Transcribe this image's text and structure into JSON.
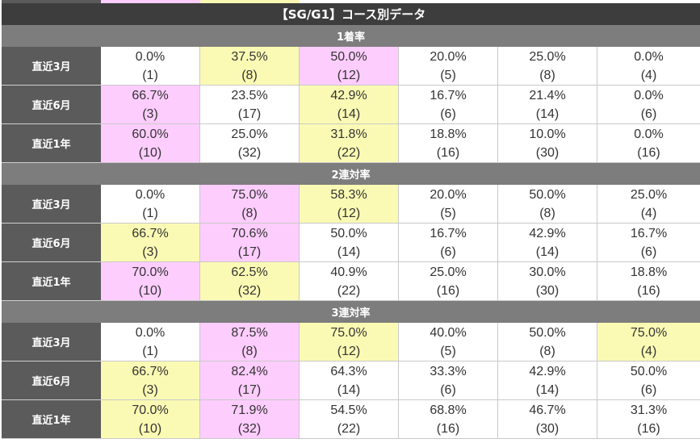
{
  "colors": {
    "title_bg": "#3d3d3d",
    "section_bg": "#7d7d7d",
    "label_bg": "#5b5b5b",
    "highlight_pink": "#fdcdfd",
    "highlight_yellow": "#fafab4",
    "cell_text": "#333333"
  },
  "title": "【SG/G1】コース別データ",
  "sections": [
    {
      "header": "1着率",
      "rows": [
        {
          "label": "直近3月",
          "cells": [
            {
              "pct": "0.0%",
              "count": "(1)",
              "hl": "none"
            },
            {
              "pct": "37.5%",
              "count": "(8)",
              "hl": "yellow"
            },
            {
              "pct": "50.0%",
              "count": "(12)",
              "hl": "pink"
            },
            {
              "pct": "20.0%",
              "count": "(5)",
              "hl": "none"
            },
            {
              "pct": "25.0%",
              "count": "(8)",
              "hl": "none"
            },
            {
              "pct": "0.0%",
              "count": "(4)",
              "hl": "none"
            }
          ]
        },
        {
          "label": "直近6月",
          "cells": [
            {
              "pct": "66.7%",
              "count": "(3)",
              "hl": "pink"
            },
            {
              "pct": "23.5%",
              "count": "(17)",
              "hl": "none"
            },
            {
              "pct": "42.9%",
              "count": "(14)",
              "hl": "yellow"
            },
            {
              "pct": "16.7%",
              "count": "(6)",
              "hl": "none"
            },
            {
              "pct": "21.4%",
              "count": "(14)",
              "hl": "none"
            },
            {
              "pct": "0.0%",
              "count": "(6)",
              "hl": "none"
            }
          ]
        },
        {
          "label": "直近1年",
          "cells": [
            {
              "pct": "60.0%",
              "count": "(10)",
              "hl": "pink"
            },
            {
              "pct": "25.0%",
              "count": "(32)",
              "hl": "none"
            },
            {
              "pct": "31.8%",
              "count": "(22)",
              "hl": "yellow"
            },
            {
              "pct": "18.8%",
              "count": "(16)",
              "hl": "none"
            },
            {
              "pct": "10.0%",
              "count": "(30)",
              "hl": "none"
            },
            {
              "pct": "0.0%",
              "count": "(16)",
              "hl": "none"
            }
          ]
        }
      ]
    },
    {
      "header": "2連対率",
      "rows": [
        {
          "label": "直近3月",
          "cells": [
            {
              "pct": "0.0%",
              "count": "(1)",
              "hl": "none"
            },
            {
              "pct": "75.0%",
              "count": "(8)",
              "hl": "pink"
            },
            {
              "pct": "58.3%",
              "count": "(12)",
              "hl": "yellow"
            },
            {
              "pct": "20.0%",
              "count": "(5)",
              "hl": "none"
            },
            {
              "pct": "50.0%",
              "count": "(8)",
              "hl": "none"
            },
            {
              "pct": "25.0%",
              "count": "(4)",
              "hl": "none"
            }
          ]
        },
        {
          "label": "直近6月",
          "cells": [
            {
              "pct": "66.7%",
              "count": "(3)",
              "hl": "yellow"
            },
            {
              "pct": "70.6%",
              "count": "(17)",
              "hl": "pink"
            },
            {
              "pct": "50.0%",
              "count": "(14)",
              "hl": "none"
            },
            {
              "pct": "16.7%",
              "count": "(6)",
              "hl": "none"
            },
            {
              "pct": "42.9%",
              "count": "(14)",
              "hl": "none"
            },
            {
              "pct": "16.7%",
              "count": "(6)",
              "hl": "none"
            }
          ]
        },
        {
          "label": "直近1年",
          "cells": [
            {
              "pct": "70.0%",
              "count": "(10)",
              "hl": "pink"
            },
            {
              "pct": "62.5%",
              "count": "(32)",
              "hl": "yellow"
            },
            {
              "pct": "40.9%",
              "count": "(22)",
              "hl": "none"
            },
            {
              "pct": "25.0%",
              "count": "(16)",
              "hl": "none"
            },
            {
              "pct": "30.0%",
              "count": "(30)",
              "hl": "none"
            },
            {
              "pct": "18.8%",
              "count": "(16)",
              "hl": "none"
            }
          ]
        }
      ]
    },
    {
      "header": "3連対率",
      "rows": [
        {
          "label": "直近3月",
          "cells": [
            {
              "pct": "0.0%",
              "count": "(1)",
              "hl": "none"
            },
            {
              "pct": "87.5%",
              "count": "(8)",
              "hl": "pink"
            },
            {
              "pct": "75.0%",
              "count": "(12)",
              "hl": "yellow"
            },
            {
              "pct": "40.0%",
              "count": "(5)",
              "hl": "none"
            },
            {
              "pct": "50.0%",
              "count": "(8)",
              "hl": "none"
            },
            {
              "pct": "75.0%",
              "count": "(4)",
              "hl": "yellow"
            }
          ]
        },
        {
          "label": "直近6月",
          "cells": [
            {
              "pct": "66.7%",
              "count": "(3)",
              "hl": "yellow"
            },
            {
              "pct": "82.4%",
              "count": "(17)",
              "hl": "pink"
            },
            {
              "pct": "64.3%",
              "count": "(14)",
              "hl": "none"
            },
            {
              "pct": "33.3%",
              "count": "(6)",
              "hl": "none"
            },
            {
              "pct": "42.9%",
              "count": "(14)",
              "hl": "none"
            },
            {
              "pct": "50.0%",
              "count": "(6)",
              "hl": "none"
            }
          ]
        },
        {
          "label": "直近1年",
          "cells": [
            {
              "pct": "70.0%",
              "count": "(10)",
              "hl": "yellow"
            },
            {
              "pct": "71.9%",
              "count": "(32)",
              "hl": "pink"
            },
            {
              "pct": "54.5%",
              "count": "(22)",
              "hl": "none"
            },
            {
              "pct": "68.8%",
              "count": "(16)",
              "hl": "none"
            },
            {
              "pct": "46.7%",
              "count": "(30)",
              "hl": "none"
            },
            {
              "pct": "31.3%",
              "count": "(16)",
              "hl": "none"
            }
          ]
        }
      ]
    }
  ]
}
